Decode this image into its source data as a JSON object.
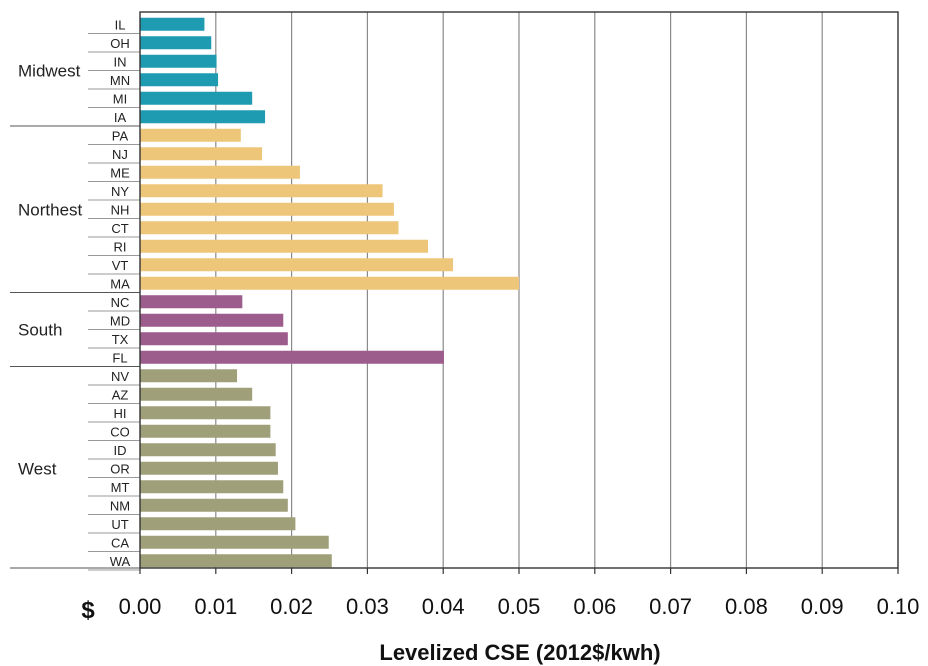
{
  "chart_data": {
    "type": "bar",
    "orientation": "horizontal",
    "xlabel": "Levelized CSE (2012$/kwh)",
    "currency_symbol": "$",
    "xlim": [
      0,
      0.1
    ],
    "xticks": [
      "0.00",
      "0.01",
      "0.02",
      "0.03",
      "0.04",
      "0.05",
      "0.06",
      "0.07",
      "0.08",
      "0.09",
      "0.10"
    ],
    "grid": true,
    "colors": {
      "Midwest": "#1e9bb0",
      "Northest": "#eec67a",
      "South": "#9c5c8c",
      "West": "#9fa07a"
    },
    "groups": [
      {
        "name": "Midwest",
        "categories": [
          "IL",
          "OH",
          "IN",
          "MN",
          "MI",
          "IA"
        ],
        "values": [
          0.0085,
          0.0094,
          0.0101,
          0.0103,
          0.0148,
          0.0165
        ]
      },
      {
        "name": "Northest",
        "categories": [
          "PA",
          "NJ",
          "ME",
          "NY",
          "NH",
          "CT",
          "RI",
          "VT",
          "MA"
        ],
        "values": [
          0.0133,
          0.0161,
          0.0211,
          0.032,
          0.0335,
          0.0341,
          0.038,
          0.0413,
          0.05
        ]
      },
      {
        "name": "South",
        "categories": [
          "NC",
          "MD",
          "TX",
          "FL"
        ],
        "values": [
          0.0135,
          0.0189,
          0.0195,
          0.0401
        ]
      },
      {
        "name": "West",
        "categories": [
          "NV",
          "AZ",
          "HI",
          "CO",
          "ID",
          "OR",
          "MT",
          "NM",
          "UT",
          "CA",
          "WA"
        ],
        "values": [
          0.0128,
          0.0148,
          0.0172,
          0.0172,
          0.0179,
          0.0182,
          0.0189,
          0.0195,
          0.0205,
          0.0249,
          0.0253
        ]
      }
    ]
  }
}
